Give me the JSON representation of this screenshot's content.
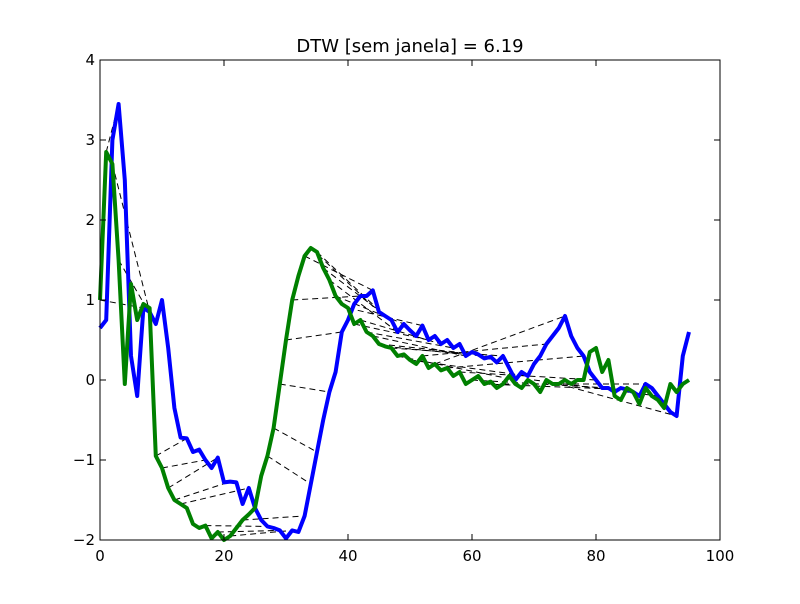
{
  "chart_data": {
    "type": "line",
    "title": "DTW [sem janela] = 6.19",
    "xlabel": "",
    "ylabel": "",
    "xlim": [
      0,
      100
    ],
    "ylim": [
      -2,
      4
    ],
    "x_ticks": [
      0,
      20,
      40,
      60,
      80,
      100
    ],
    "y_ticks": [
      -2,
      -1,
      0,
      1,
      2,
      3,
      4
    ],
    "grid": false,
    "legend": "none",
    "series": [
      {
        "color": "#0000ff",
        "x": [
          0,
          1,
          2,
          3,
          4,
          5,
          6,
          7,
          8,
          9,
          10,
          11,
          12,
          13,
          14,
          15,
          16,
          17,
          18,
          19,
          20,
          21,
          22,
          23,
          24,
          25,
          26,
          27,
          28,
          29,
          30,
          31,
          32,
          33,
          34,
          35,
          36,
          37,
          38,
          39,
          40,
          41,
          42,
          43,
          44,
          45,
          46,
          47,
          48,
          49,
          50,
          51,
          52,
          53,
          54,
          55,
          56,
          57,
          58,
          59,
          60,
          61,
          62,
          63,
          64,
          65,
          66,
          67,
          68,
          69,
          70,
          71,
          72,
          73,
          74,
          75,
          76,
          77,
          78,
          79,
          80,
          81,
          82,
          83,
          84,
          85,
          86,
          87,
          88,
          89,
          90,
          91,
          92,
          93,
          94,
          95
        ],
        "y": [
          0.65,
          0.75,
          3.0,
          3.45,
          2.5,
          0.3,
          -0.2,
          0.9,
          0.85,
          0.7,
          1.0,
          0.4,
          -0.35,
          -0.72,
          -0.73,
          -0.9,
          -0.87,
          -1.0,
          -1.1,
          -0.97,
          -1.28,
          -1.27,
          -1.28,
          -1.55,
          -1.35,
          -1.6,
          -1.75,
          -1.83,
          -1.85,
          -1.88,
          -1.98,
          -1.88,
          -1.9,
          -1.7,
          -1.3,
          -0.9,
          -0.5,
          -0.15,
          0.1,
          0.6,
          0.75,
          0.95,
          1.05,
          1.05,
          1.12,
          0.85,
          0.8,
          0.75,
          0.6,
          0.7,
          0.62,
          0.55,
          0.68,
          0.5,
          0.55,
          0.45,
          0.5,
          0.4,
          0.45,
          0.3,
          0.35,
          0.32,
          0.27,
          0.29,
          0.22,
          0.3,
          0.15,
          0.0,
          0.1,
          0.05,
          0.2,
          0.3,
          0.45,
          0.55,
          0.65,
          0.8,
          0.55,
          0.4,
          0.3,
          0.1,
          0.0,
          -0.1,
          -0.1,
          -0.15,
          -0.1,
          -0.12,
          -0.15,
          -0.2,
          -0.05,
          -0.1,
          -0.2,
          -0.3,
          -0.4,
          -0.45,
          0.3,
          0.6
        ]
      },
      {
        "color": "#008000",
        "x": [
          0,
          1,
          2,
          3,
          4,
          5,
          6,
          7,
          8,
          9,
          10,
          11,
          12,
          13,
          14,
          15,
          16,
          17,
          18,
          19,
          20,
          21,
          22,
          23,
          24,
          25,
          26,
          27,
          28,
          29,
          30,
          31,
          32,
          33,
          34,
          35,
          36,
          37,
          38,
          39,
          40,
          41,
          42,
          43,
          44,
          45,
          46,
          47,
          48,
          49,
          50,
          51,
          52,
          53,
          54,
          55,
          56,
          57,
          58,
          59,
          60,
          61,
          62,
          63,
          64,
          65,
          66,
          67,
          68,
          69,
          70,
          71,
          72,
          73,
          74,
          75,
          76,
          77,
          78,
          79,
          80,
          81,
          82,
          83,
          84,
          85,
          86,
          87,
          88,
          89,
          90,
          91,
          92,
          93,
          94,
          95
        ],
        "y": [
          1.0,
          2.85,
          2.7,
          1.5,
          -0.05,
          1.2,
          0.75,
          0.95,
          0.9,
          -0.95,
          -1.1,
          -1.35,
          -1.5,
          -1.55,
          -1.6,
          -1.8,
          -1.85,
          -1.82,
          -1.98,
          -1.9,
          -2.0,
          -1.95,
          -1.85,
          -1.75,
          -1.68,
          -1.6,
          -1.2,
          -0.95,
          -0.6,
          -0.05,
          0.5,
          1.0,
          1.3,
          1.55,
          1.65,
          1.6,
          1.4,
          1.25,
          1.05,
          0.95,
          0.9,
          0.7,
          0.75,
          0.6,
          0.55,
          0.45,
          0.42,
          0.4,
          0.3,
          0.32,
          0.25,
          0.2,
          0.3,
          0.15,
          0.2,
          0.12,
          0.15,
          0.05,
          0.1,
          -0.05,
          0.0,
          0.05,
          -0.05,
          -0.02,
          -0.1,
          -0.05,
          0.05,
          -0.05,
          -0.1,
          0.0,
          -0.05,
          -0.15,
          0.0,
          -0.05,
          -0.05,
          0.0,
          -0.05,
          0.0,
          0.0,
          0.35,
          0.4,
          0.1,
          0.25,
          -0.2,
          -0.25,
          -0.1,
          -0.15,
          -0.3,
          -0.1,
          -0.2,
          -0.25,
          -0.35,
          -0.05,
          -0.15,
          -0.05,
          0.0
        ]
      }
    ],
    "warping_links": [
      [
        [
          1,
          2.85
        ],
        [
          3,
          3.45
        ]
      ],
      [
        [
          0,
          1.0
        ],
        [
          7,
          0.9
        ]
      ],
      [
        [
          2,
          2.7
        ],
        [
          8,
          0.85
        ]
      ],
      [
        [
          3,
          1.5
        ],
        [
          9,
          0.7
        ]
      ],
      [
        [
          9,
          -0.95
        ],
        [
          14,
          -0.73
        ]
      ],
      [
        [
          10,
          -1.1
        ],
        [
          17,
          -1.0
        ]
      ],
      [
        [
          11,
          -1.35
        ],
        [
          19,
          -0.97
        ]
      ],
      [
        [
          12,
          -1.5
        ],
        [
          21,
          -1.27
        ]
      ],
      [
        [
          13,
          -1.55
        ],
        [
          24,
          -1.35
        ]
      ],
      [
        [
          17,
          -1.82
        ],
        [
          27,
          -1.83
        ]
      ],
      [
        [
          19,
          -1.9
        ],
        [
          29,
          -1.88
        ]
      ],
      [
        [
          21,
          -1.95
        ],
        [
          31,
          -1.88
        ]
      ],
      [
        [
          23,
          -1.75
        ],
        [
          33,
          -1.7
        ]
      ],
      [
        [
          27,
          -0.95
        ],
        [
          34,
          -1.3
        ]
      ],
      [
        [
          28,
          -0.6
        ],
        [
          35,
          -0.9
        ]
      ],
      [
        [
          29,
          -0.05
        ],
        [
          37,
          -0.15
        ]
      ],
      [
        [
          30,
          0.5
        ],
        [
          39,
          0.6
        ]
      ],
      [
        [
          31,
          1.0
        ],
        [
          42,
          1.05
        ]
      ],
      [
        [
          33,
          1.55
        ],
        [
          44,
          1.12
        ]
      ],
      [
        [
          34,
          1.65
        ],
        [
          45,
          0.85
        ]
      ],
      [
        [
          35,
          1.6
        ],
        [
          46,
          0.8
        ]
      ],
      [
        [
          36,
          1.4
        ],
        [
          47,
          0.75
        ]
      ],
      [
        [
          37,
          1.25
        ],
        [
          48,
          0.6
        ]
      ],
      [
        [
          38,
          1.05
        ],
        [
          49,
          0.7
        ]
      ],
      [
        [
          40,
          0.9
        ],
        [
          52,
          0.68
        ]
      ],
      [
        [
          41,
          0.7
        ],
        [
          53,
          0.5
        ]
      ],
      [
        [
          42,
          0.75
        ],
        [
          55,
          0.45
        ]
      ],
      [
        [
          43,
          0.6
        ],
        [
          57,
          0.4
        ]
      ],
      [
        [
          44,
          0.55
        ],
        [
          59,
          0.3
        ]
      ],
      [
        [
          45,
          0.45
        ],
        [
          61,
          0.32
        ]
      ],
      [
        [
          46,
          0.42
        ],
        [
          63,
          0.29
        ]
      ],
      [
        [
          47,
          0.4
        ],
        [
          65,
          0.3
        ]
      ],
      [
        [
          48,
          0.3
        ],
        [
          67,
          0.0
        ]
      ],
      [
        [
          50,
          0.25
        ],
        [
          69,
          0.05
        ]
      ],
      [
        [
          52,
          0.3
        ],
        [
          72,
          0.45
        ]
      ],
      [
        [
          54,
          0.2
        ],
        [
          75,
          0.8
        ]
      ],
      [
        [
          56,
          0.15
        ],
        [
          78,
          0.3
        ]
      ],
      [
        [
          58,
          0.1
        ],
        [
          80,
          0.0
        ]
      ],
      [
        [
          60,
          0.0
        ],
        [
          82,
          -0.1
        ]
      ],
      [
        [
          62,
          -0.05
        ],
        [
          85,
          -0.12
        ]
      ],
      [
        [
          65,
          -0.05
        ],
        [
          88,
          -0.05
        ]
      ],
      [
        [
          70,
          0.0
        ],
        [
          90,
          -0.2
        ]
      ],
      [
        [
          74,
          -0.05
        ],
        [
          93,
          -0.45
        ]
      ]
    ]
  }
}
